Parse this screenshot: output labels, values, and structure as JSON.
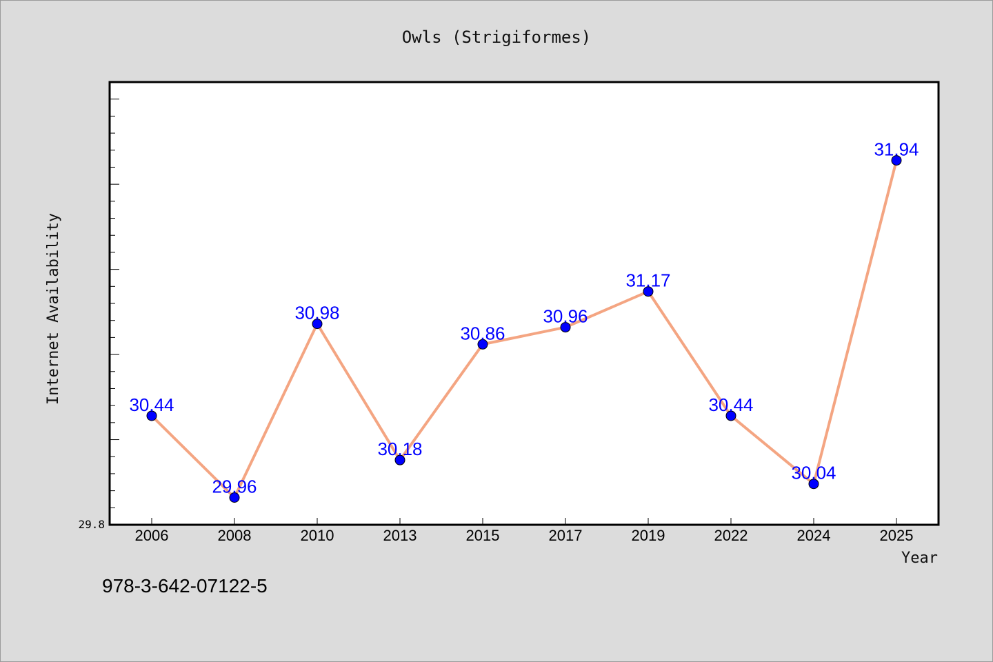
{
  "chart_data": {
    "type": "line",
    "title": "Owls (Strigiformes)",
    "xlabel": "Year",
    "ylabel": "Internet Availability",
    "categories": [
      "2006",
      "2008",
      "2010",
      "2013",
      "2015",
      "2017",
      "2019",
      "2022",
      "2024",
      "2025"
    ],
    "series": [
      {
        "values": [
          30.44,
          29.96,
          30.98,
          30.18,
          30.86,
          30.96,
          31.17,
          30.44,
          30.04,
          31.94
        ],
        "data_labels": [
          "30.44",
          "29.96",
          "30.98",
          "30.18",
          "30.86",
          "30.96",
          "31.17",
          "30.44",
          "30.04",
          "31.94"
        ]
      }
    ],
    "ylim": [
      29.8,
      32.4
    ],
    "ytick_labels": [
      "29.8"
    ],
    "grid": false,
    "colors": {
      "line": "#f4a582",
      "marker": "#0000ff",
      "label": "#0000ff",
      "plot_bg": "#ffffff",
      "page_bg": "#dcdcdc"
    }
  },
  "footer": {
    "isbn": "978-3-642-07122-5"
  }
}
